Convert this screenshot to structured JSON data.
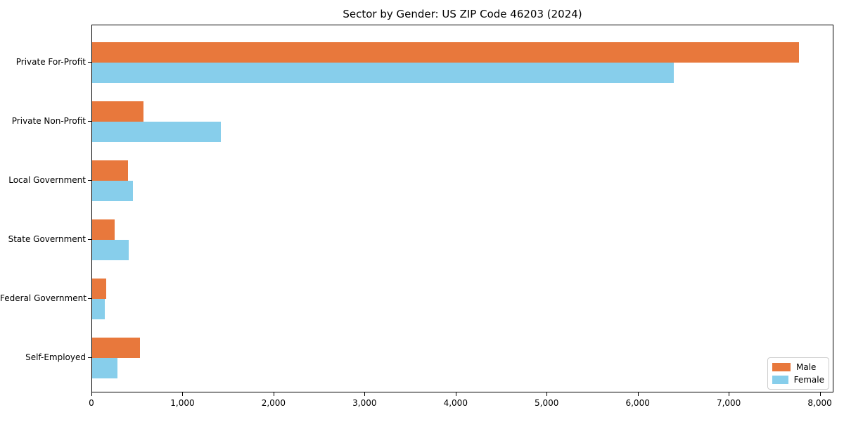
{
  "chart_data": {
    "type": "bar",
    "orientation": "horizontal",
    "title": "Sector by Gender: US ZIP Code 46203 (2024)",
    "categories": [
      "Private For-Profit",
      "Private Non-Profit",
      "Local Government",
      "State Government",
      "Federal Government",
      "Self-Employed"
    ],
    "series": [
      {
        "name": "Male",
        "color": "#e8783c",
        "values": [
          7760,
          565,
          395,
          250,
          155,
          525
        ]
      },
      {
        "name": "Female",
        "color": "#87ceeb",
        "values": [
          6390,
          1410,
          445,
          400,
          140,
          280
        ]
      }
    ],
    "xlabel": "",
    "ylabel": "",
    "xlim": [
      0,
      8150
    ],
    "xticks": [
      0,
      1000,
      2000,
      3000,
      4000,
      5000,
      6000,
      7000,
      8000
    ],
    "xtick_labels": [
      "0",
      "1,000",
      "2,000",
      "3,000",
      "4,000",
      "5,000",
      "6,000",
      "7,000",
      "8,000"
    ],
    "grid": false,
    "background_color": "#ffffff",
    "axis_color": "#000000",
    "legend_position": "lower right"
  }
}
